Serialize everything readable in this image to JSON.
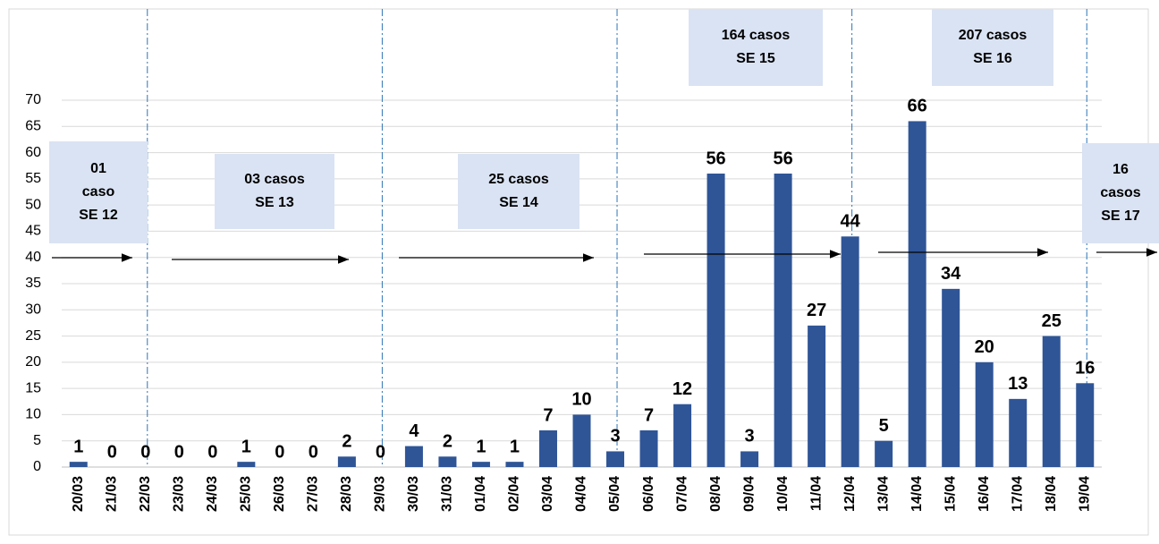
{
  "chart_data": {
    "type": "bar",
    "categories": [
      "20/03",
      "21/03",
      "22/03",
      "23/03",
      "24/03",
      "25/03",
      "26/03",
      "27/03",
      "28/03",
      "29/03",
      "30/03",
      "31/03",
      "01/04",
      "02/04",
      "03/04",
      "04/04",
      "05/04",
      "06/04",
      "07/04",
      "08/04",
      "09/04",
      "10/04",
      "11/04",
      "12/04",
      "13/04",
      "14/04",
      "15/04",
      "16/04",
      "17/04",
      "18/04",
      "19/04"
    ],
    "values": [
      1,
      0,
      0,
      0,
      0,
      1,
      0,
      0,
      2,
      0,
      4,
      2,
      1,
      1,
      7,
      10,
      3,
      7,
      12,
      56,
      3,
      56,
      27,
      44,
      5,
      66,
      34,
      20,
      13,
      25,
      16
    ],
    "color": "#2f5597",
    "ylim": [
      0,
      70
    ],
    "yticks": [
      0,
      5,
      10,
      15,
      20,
      25,
      30,
      35,
      40,
      45,
      50,
      55,
      60,
      65,
      70
    ],
    "grid": true,
    "annotations": [
      {
        "lines": [
          "01",
          "caso",
          "SE 12"
        ]
      },
      {
        "lines": [
          "03 casos",
          "SE 13"
        ]
      },
      {
        "lines": [
          "25 casos",
          "SE 14"
        ]
      },
      {
        "lines": [
          "164 casos",
          "SE 15"
        ]
      },
      {
        "lines": [
          "207 casos",
          "SE 16"
        ]
      },
      {
        "lines": [
          "16",
          "casos",
          "SE 17"
        ]
      }
    ]
  }
}
